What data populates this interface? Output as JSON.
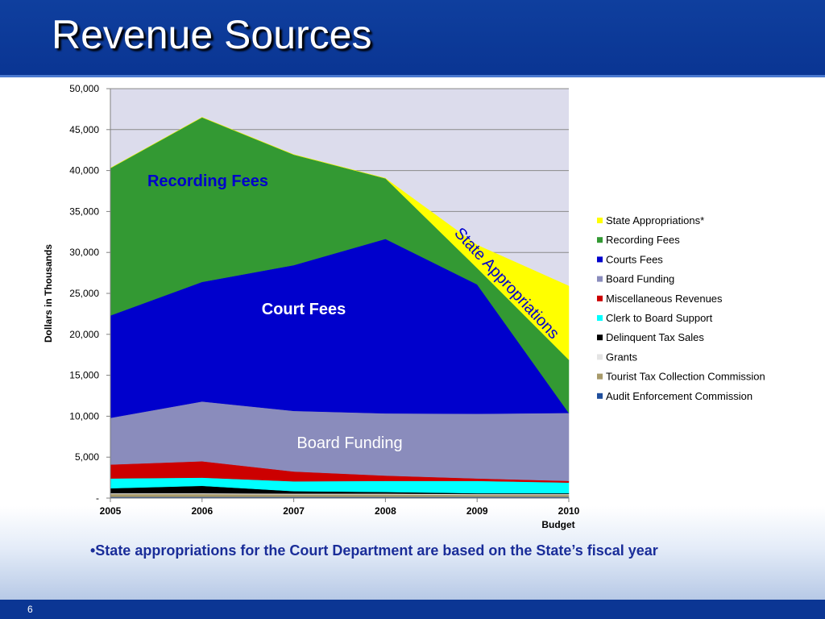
{
  "slide": {
    "title": "Revenue Sources",
    "page_number": "6",
    "note": "•State appropriations for the Court Department are based on the State’s fiscal year"
  },
  "colors": {
    "header": "#0f3f9e",
    "plot_background": "#dcdcec"
  },
  "chart_data": {
    "type": "area",
    "stacked": true,
    "ylabel": "Dollars in Thousands",
    "xlabel": "",
    "x": [
      "2005",
      "2006",
      "2007",
      "2008",
      "2009",
      "2010 Budget"
    ],
    "x_labels": [
      [
        "2005"
      ],
      [
        "2006"
      ],
      [
        "2007"
      ],
      [
        "2008"
      ],
      [
        "2009"
      ],
      [
        "2010",
        "Budget"
      ]
    ],
    "ylim": [
      0,
      50000
    ],
    "yticks": [
      0,
      5000,
      10000,
      15000,
      20000,
      25000,
      30000,
      35000,
      40000,
      45000,
      50000
    ],
    "ytick_labels": [
      "-",
      "5,000",
      "10,000",
      "15,000",
      "20,000",
      "25,000",
      "30,000",
      "35,000",
      "40,000",
      "45,000",
      "50,000"
    ],
    "grid": true,
    "legend_position": "right",
    "series": [
      {
        "name": "Audit Enforcement Commission",
        "color": "#1f4e9c",
        "values": [
          150,
          150,
          150,
          150,
          150,
          150
        ]
      },
      {
        "name": "Tourist Tax Collection Commission",
        "color": "#a89a6a",
        "values": [
          350,
          350,
          300,
          300,
          250,
          250
        ]
      },
      {
        "name": "Grants",
        "color": "#e4e4e4",
        "values": [
          100,
          100,
          100,
          100,
          100,
          100
        ]
      },
      {
        "name": "Delinquent Tax Sales",
        "color": "#000000",
        "values": [
          600,
          900,
          300,
          200,
          100,
          100
        ]
      },
      {
        "name": "Clerk to Board Support",
        "color": "#00ffff",
        "values": [
          1200,
          1000,
          1200,
          1350,
          1500,
          1300
        ]
      },
      {
        "name": "Miscellaneous Revenues",
        "color": "#cc0000",
        "values": [
          1700,
          2000,
          1200,
          650,
          300,
          200
        ]
      },
      {
        "name": "Board Funding",
        "color": "#8a8cbc",
        "values": [
          5700,
          7300,
          7400,
          7600,
          7900,
          8300
        ]
      },
      {
        "name": "Courts Fees",
        "color": "#0000cc",
        "values": [
          12500,
          14600,
          17800,
          21300,
          15800,
          0
        ]
      },
      {
        "name": "Recording Fees",
        "color": "#339933",
        "values": [
          18000,
          20100,
          13500,
          7400,
          2000,
          6500
        ]
      },
      {
        "name": "State Appropriations*",
        "color": "#ffff00",
        "values": [
          0,
          0,
          0,
          0,
          2800,
          9000
        ]
      }
    ],
    "legend": [
      "State Appropriations*",
      "Recording Fees",
      "Courts Fees",
      "Board Funding",
      "Miscellaneous Revenues",
      "Clerk to Board Support",
      "Delinquent Tax Sales",
      "Grants",
      "Tourist Tax Collection Commission",
      "Audit Enforcement Commission"
    ],
    "annotations": [
      {
        "text": "Recording Fees",
        "color": "#0000cc",
        "style": "bold"
      },
      {
        "text": "Court Fees",
        "color": "#ffffff",
        "style": "bold"
      },
      {
        "text": "Board Funding",
        "color": "#ffffff",
        "style": "plain"
      },
      {
        "text": "State Appropriations",
        "color": "#0000cc",
        "style": "rotated"
      }
    ]
  }
}
